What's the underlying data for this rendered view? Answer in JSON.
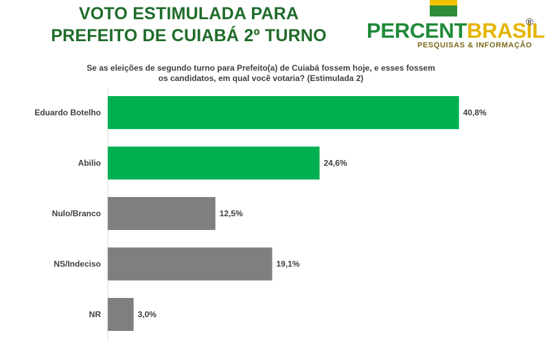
{
  "title": {
    "line1": "VOTO ESTIMULADA PARA",
    "line2": "PREFEITO DE  CUIABÁ 2º TURNO"
  },
  "logo": {
    "text_part1": "PERCENT",
    "text_part2": "BRASIL",
    "registered": "®",
    "tagline": "PESQUISAS & INFORMAÇÃO",
    "colors": {
      "green": "#1f8a3a",
      "yellow": "#e5b400"
    }
  },
  "question": "Se as eleições de segundo turno para Prefeito(a) de Cuiabá fossem hoje, e esses fossem os candidatos, em qual você votaria? (Estimulada 2)",
  "chart_data": {
    "type": "bar",
    "orientation": "horizontal",
    "categories": [
      "Eduardo Botelho",
      "Abilio",
      "Nulo/Branco",
      "NS/Indeciso",
      "NR"
    ],
    "values": [
      40.8,
      24.6,
      12.5,
      19.1,
      3.0
    ],
    "value_labels": [
      "40,8%",
      "24,6%",
      "12,5%",
      "19,1%",
      "3,0%"
    ],
    "colors": [
      "#00b050",
      "#00b050",
      "#7f7f7f",
      "#7f7f7f",
      "#7f7f7f"
    ],
    "xlim": [
      0,
      50
    ],
    "grid": false,
    "legend": "none"
  }
}
